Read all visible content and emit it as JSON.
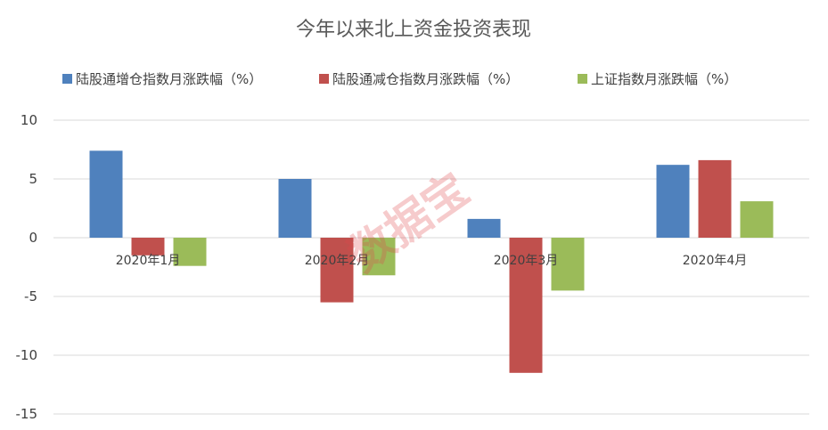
{
  "chart_data": {
    "type": "bar",
    "title": "今年以来北上资金投资表现",
    "categories": [
      "2020年1月",
      "2020年2月",
      "2020年3月",
      "2020年4月"
    ],
    "series": [
      {
        "name": "陆股通增仓指数月涨跌幅（%）",
        "color": "#4f81bd",
        "values": [
          7.4,
          5.0,
          1.6,
          6.2
        ]
      },
      {
        "name": "陆股通减仓指数月涨跌幅（%）",
        "color": "#c0504d",
        "values": [
          -1.5,
          -5.5,
          -11.5,
          6.6
        ]
      },
      {
        "name": "上证指数月涨跌幅（%）",
        "color": "#9bbb59",
        "values": [
          -2.4,
          -3.2,
          -4.5,
          3.1
        ]
      }
    ],
    "ylim": [
      -15,
      10
    ],
    "yticks": [
      10,
      5,
      0,
      -5,
      -10,
      -15
    ],
    "grid": true,
    "legend_position": "top",
    "xlabel": "",
    "ylabel": ""
  },
  "watermark": "数据宝"
}
